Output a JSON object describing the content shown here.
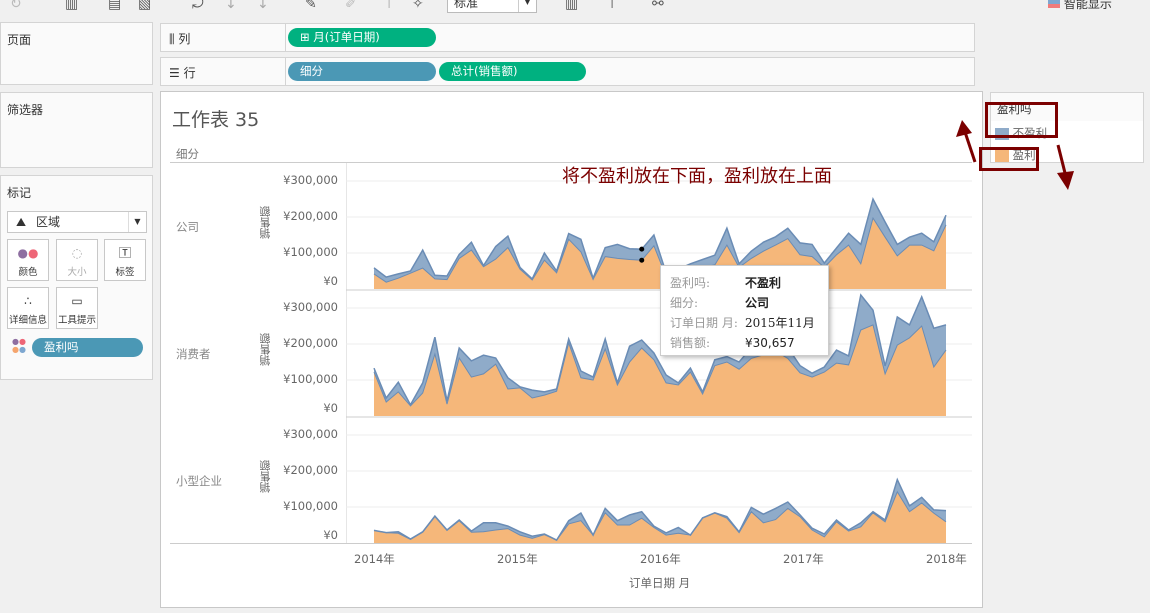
{
  "toolbar": {
    "view_size": "标准",
    "show_me": "智能显示"
  },
  "pages_card": {
    "title": "页面"
  },
  "filters_card": {
    "title": "筛选器"
  },
  "marks_card": {
    "title": "标记",
    "mark_type": "区域",
    "buttons": [
      "颜色",
      "大小",
      "标签",
      "详细信息",
      "工具提示"
    ],
    "color_pill": "盈利吗"
  },
  "shelves": {
    "columns_label": "列",
    "rows_label": "行",
    "columns_pills": [
      "月(订单日期)"
    ],
    "rows_pills": [
      "细分",
      "总计(销售额)"
    ]
  },
  "sheet": {
    "title": "工作表 35",
    "row_header": "细分",
    "annotation": "将不盈利放在下面，盈利放在上面"
  },
  "legend": {
    "title": "盈利吗",
    "items": [
      {
        "label": "不盈利",
        "color": "#8fabc9"
      },
      {
        "label": "盈利",
        "color": "#f5b77a"
      }
    ]
  },
  "tooltip": {
    "rows": [
      {
        "k": "盈利吗:",
        "v": "不盈利"
      },
      {
        "k": "细分:",
        "v": "公司"
      },
      {
        "k": "订单日期 月:",
        "v": "2015年11月"
      },
      {
        "k": "销售额:",
        "v": "¥30,657"
      }
    ]
  },
  "chart_data": {
    "type": "area",
    "stacked": true,
    "xlabel": "订单日期 月",
    "ylabel": "销售额",
    "x_ticks": [
      "2014年",
      "2015年",
      "2016年",
      "2017年",
      "2018年"
    ],
    "y_ticks": [
      "¥0",
      "¥100,000",
      "¥200,000",
      "¥300,000"
    ],
    "ylim": [
      0,
      300000
    ],
    "x_range": [
      "2014-01",
      "2017-12"
    ],
    "grid": true,
    "legend": "right",
    "colors": {
      "不盈利": "#8fabc9",
      "盈利": "#f5b77a"
    },
    "panels": [
      {
        "segment": "公司",
        "盈利": [
          42000,
          19000,
          30000,
          44000,
          58000,
          28000,
          26000,
          85000,
          108000,
          62000,
          83000,
          115000,
          55000,
          25000,
          80000,
          45000,
          138000,
          103000,
          27000,
          90000,
          85000,
          82000,
          80000,
          120000,
          35000,
          45000,
          55000,
          60000,
          67000,
          122000,
          60000,
          85000,
          105000,
          122000,
          140000,
          95000,
          90000,
          60000,
          95000,
          122000,
          70000,
          197000,
          144000,
          92000,
          122000,
          122000,
          106000,
          178000
        ],
        "不盈利": [
          17000,
          14000,
          12000,
          6000,
          50000,
          10000,
          10000,
          11000,
          22000,
          3000,
          35000,
          32000,
          5000,
          3000,
          20000,
          5000,
          16000,
          35000,
          3000,
          25000,
          39000,
          30000,
          30657,
          30000,
          10000,
          10000,
          15000,
          22000,
          27000,
          47000,
          10000,
          20000,
          25000,
          23000,
          29000,
          33000,
          34000,
          12000,
          19000,
          33000,
          54000,
          53000,
          42000,
          32000,
          22000,
          33000,
          25000,
          27000
        ]
      },
      {
        "segment": "消费者",
        "盈利": [
          122000,
          39000,
          67000,
          28000,
          64000,
          172000,
          33000,
          161000,
          108000,
          117000,
          144000,
          75000,
          78000,
          50000,
          58000,
          69000,
          203000,
          106000,
          100000,
          186000,
          86000,
          150000,
          189000,
          156000,
          92000,
          86000,
          122000,
          61000,
          140000,
          150000,
          130000,
          160000,
          170000,
          180000,
          160000,
          120000,
          108000,
          122000,
          147000,
          142000,
          239000,
          253000,
          117000,
          197000,
          217000,
          250000,
          136000,
          183000
        ],
        "不盈利": [
          11000,
          11000,
          27000,
          3000,
          28000,
          47000,
          9000,
          28000,
          45000,
          52000,
          17000,
          31000,
          3000,
          22000,
          9000,
          6000,
          11000,
          19000,
          8000,
          28000,
          6000,
          44000,
          22000,
          19000,
          22000,
          6000,
          11000,
          6000,
          16000,
          15000,
          20000,
          30000,
          30000,
          30000,
          30000,
          20000,
          11000,
          14000,
          36000,
          25000,
          97000,
          41000,
          22000,
          78000,
          36000,
          81000,
          108000,
          70000
        ]
      },
      {
        "segment": "小型企业",
        "盈利": [
          35000,
          29000,
          27000,
          10000,
          30000,
          73000,
          35000,
          62000,
          30000,
          31000,
          36000,
          40000,
          22000,
          13000,
          23000,
          8000,
          53000,
          62000,
          22000,
          84000,
          50000,
          50000,
          69000,
          43000,
          22000,
          27000,
          22000,
          69000,
          83000,
          69000,
          29000,
          87000,
          56000,
          65000,
          96000,
          73000,
          36000,
          17000,
          59000,
          33000,
          45000,
          84000,
          59000,
          142000,
          87000,
          111000,
          83000,
          59000
        ],
        "不盈利": [
          0,
          0,
          4000,
          1000,
          1000,
          2000,
          1000,
          2000,
          3000,
          25000,
          20000,
          7000,
          9000,
          6000,
          2000,
          0,
          9000,
          21000,
          0,
          12000,
          12000,
          28000,
          18000,
          4000,
          6000,
          16000,
          0,
          1000,
          1000,
          4000,
          2000,
          12000,
          24000,
          31000,
          18000,
          5000,
          5000,
          8000,
          5000,
          3000,
          11000,
          3000,
          5000,
          34000,
          16000,
          16000,
          9000,
          31000
        ]
      }
    ]
  }
}
